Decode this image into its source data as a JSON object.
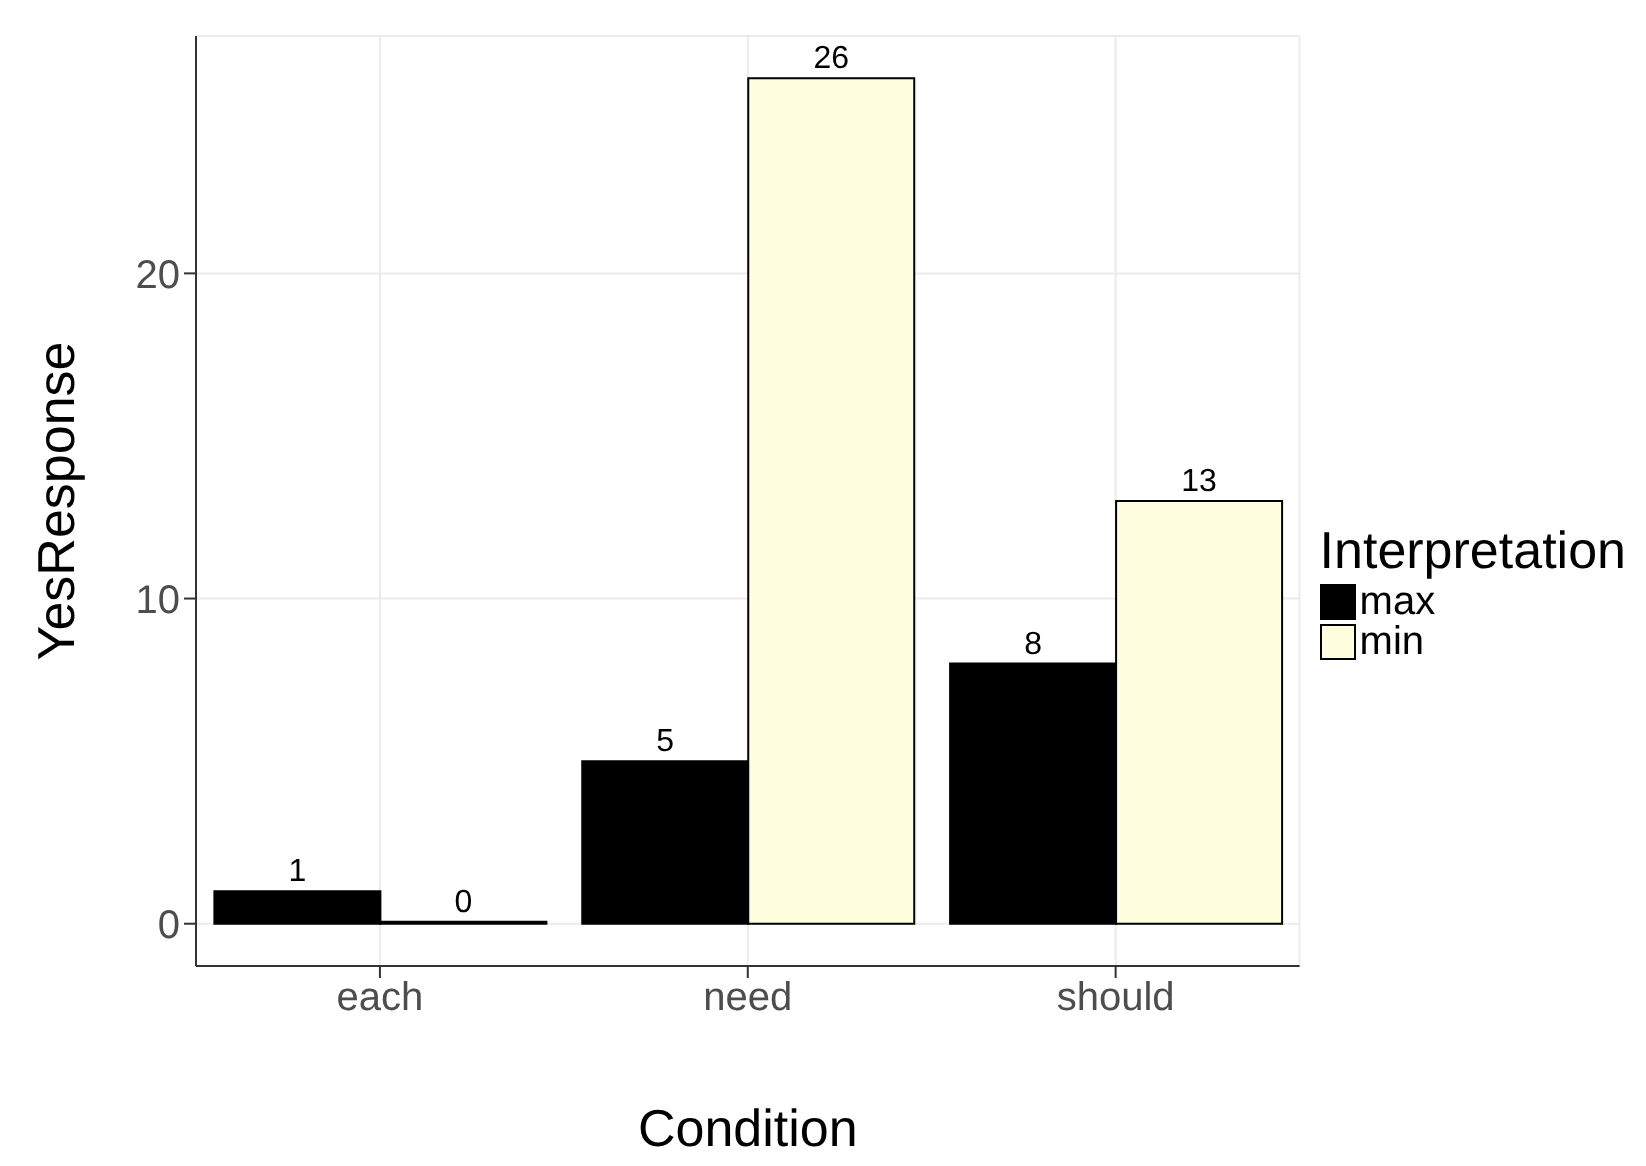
{
  "chart_data": {
    "type": "bar",
    "xlabel": "Condition",
    "ylabel": "YesResponse",
    "legend_title": "Interpretation",
    "categories": [
      "each",
      "need",
      "should"
    ],
    "series": [
      {
        "name": "max",
        "color": "#000000",
        "values": [
          1,
          5,
          8
        ]
      },
      {
        "name": "min",
        "color": "#ffffe0",
        "values": [
          0,
          26,
          13
        ]
      }
    ],
    "ylim": [
      -1.3,
      27.3
    ],
    "yticks": [
      0,
      10,
      20
    ],
    "grid": true,
    "legend": "right",
    "data_labels": true
  }
}
